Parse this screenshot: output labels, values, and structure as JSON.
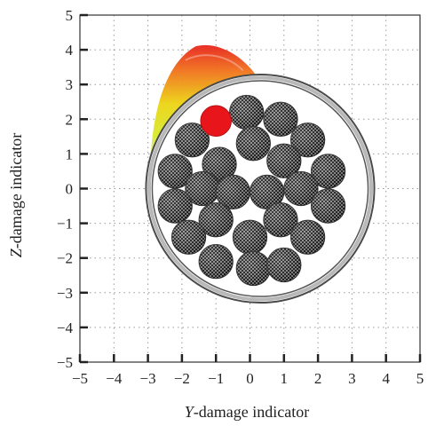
{
  "chart_data": {
    "type": "scatter",
    "xlabel": "Y-damage indicator",
    "ylabel": "Z-damage indicator",
    "xlim": [
      -5,
      5
    ],
    "ylim": [
      -5,
      5
    ],
    "xticks": [
      -5,
      -4,
      -3,
      -2,
      -1,
      0,
      1,
      2,
      3,
      4,
      5
    ],
    "yticks": [
      -5,
      -4,
      -3,
      -2,
      -1,
      0,
      1,
      2,
      3,
      4,
      5
    ],
    "grid": "dotted",
    "conductor": {
      "center": [
        0.3,
        0.0
      ],
      "radius": 3.2
    },
    "strands": [
      [
        -0.1,
        2.2
      ],
      [
        0.9,
        2.0
      ],
      [
        -1.7,
        1.4
      ],
      [
        0.1,
        1.3
      ],
      [
        1.7,
        1.4
      ],
      [
        -0.9,
        0.7
      ],
      [
        1.0,
        0.8
      ],
      [
        -2.2,
        0.5
      ],
      [
        2.3,
        0.5
      ],
      [
        -1.4,
        0.0
      ],
      [
        -0.5,
        -0.1
      ],
      [
        0.5,
        -0.1
      ],
      [
        1.5,
        0.0
      ],
      [
        -2.2,
        -0.5
      ],
      [
        2.3,
        -0.5
      ],
      [
        -1.0,
        -0.9
      ],
      [
        0.9,
        -0.9
      ],
      [
        -1.8,
        -1.4
      ],
      [
        0.0,
        -1.4
      ],
      [
        1.7,
        -1.4
      ],
      [
        -1.0,
        -2.1
      ],
      [
        0.1,
        -2.3
      ],
      [
        1.0,
        -2.2
      ]
    ],
    "damaged_strand": [
      -1.0,
      1.95
    ],
    "damage_color": "#e8161b",
    "heat_colors": [
      "#d9d9b8",
      "#d8ea2c",
      "#ecd312",
      "#f28b1a",
      "#e8241c"
    ]
  }
}
